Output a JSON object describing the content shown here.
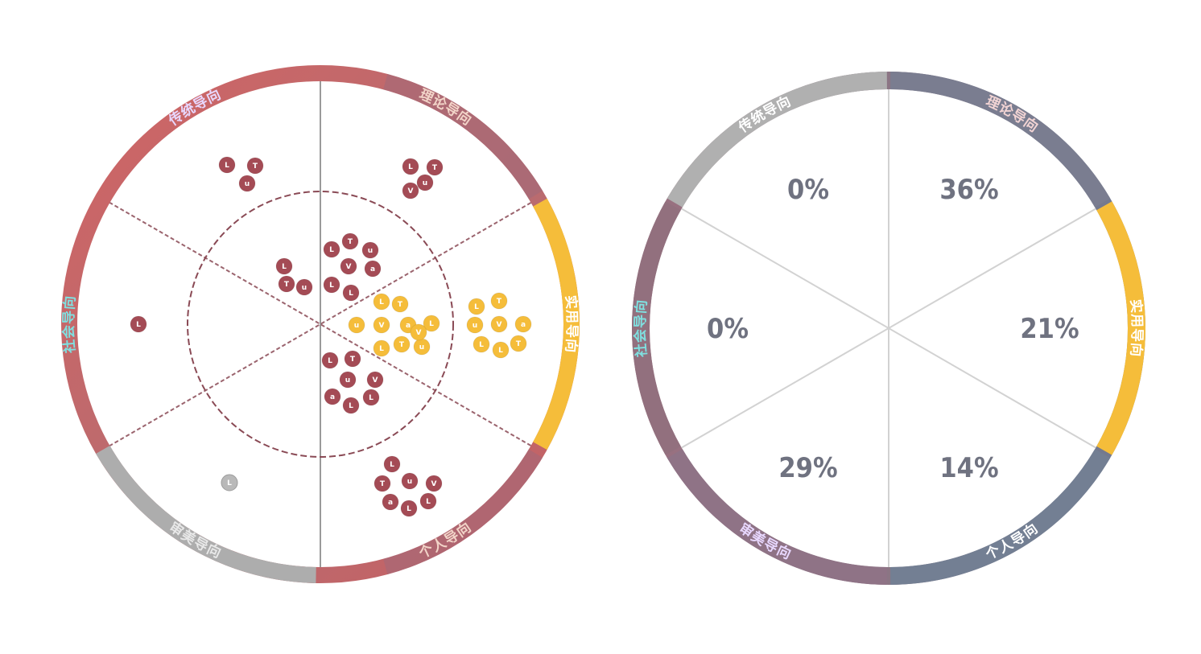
{
  "chart_data": [
    {
      "type": "scatter",
      "segments": [
        {
          "label": "理论导向",
          "label_color": "#f2d4c8"
        },
        {
          "label": "实用导向",
          "label_color": "#ffffff"
        },
        {
          "label": "个人导向",
          "label_color": "#f2d4c8"
        },
        {
          "label": "审美导向",
          "label_color": "#e8e8e8"
        },
        {
          "label": "社会导向",
          "label_color": "#7fe0e0"
        },
        {
          "label": "传统导向",
          "label_color": "#e8d8ff"
        }
      ],
      "colors": {
        "ring_red": "#c96464",
        "ring_mauve": "#a06a7a",
        "ring_gold": "#f5bd3a",
        "ring_gray": "#adadad",
        "dot_red": "#a44b55",
        "dot_gold": "#f5bd3a",
        "dot_gray": "#b9b9b9",
        "guide_line": "#8a4a55"
      },
      "clusters": [
        {
          "segment": "理论导向",
          "region": "outer",
          "color": "dot_red",
          "count": 5
        },
        {
          "segment": "理论导向",
          "region": "inner",
          "color": "dot_red",
          "count": 7
        },
        {
          "segment": "实用导向",
          "region": "outer",
          "color": "dot_gold",
          "count": 10
        },
        {
          "segment": "实用导向",
          "region": "inner",
          "color": "dot_gold",
          "count": 12
        },
        {
          "segment": "个人导向",
          "region": "inner",
          "color": "dot_red",
          "count": 8
        },
        {
          "segment": "个人导向",
          "region": "outer",
          "color": "dot_red",
          "count": 9
        },
        {
          "segment": "审美导向",
          "region": "outer",
          "color": "dot_gray",
          "count": 1
        },
        {
          "segment": "社会导向",
          "region": "outer",
          "color": "dot_red",
          "count": 1
        },
        {
          "segment": "传统导向",
          "region": "outer",
          "color": "dot_red",
          "count": 3
        },
        {
          "segment": "传统导向",
          "region": "inner",
          "color": "dot_red",
          "count": 3
        }
      ]
    },
    {
      "type": "pie",
      "slices": [
        {
          "label": "理论导向",
          "value_text": "36%",
          "value": 36,
          "ring_color": "#7a7d90",
          "label_color": "#f2d4d4"
        },
        {
          "label": "实用导向",
          "value_text": "21%",
          "value": 21,
          "ring_color": "#f5bd3a",
          "label_color": "#ffffff"
        },
        {
          "label": "个人导向",
          "value_text": "14%",
          "value": 14,
          "ring_color": "#737f93",
          "label_color": "#ffffff"
        },
        {
          "label": "审美导向",
          "value_text": "29%",
          "value": 29,
          "ring_color": "#8f7386",
          "label_color": "#e8d8ff"
        },
        {
          "label": "社会导向",
          "value_text": "0%",
          "value": 0,
          "ring_color": "#92707e",
          "label_color": "#7fe0e0"
        },
        {
          "label": "传统导向",
          "value_text": "0%",
          "value": 0,
          "ring_color": "#b0b0b0",
          "label_color": "#ffffff"
        }
      ]
    }
  ]
}
